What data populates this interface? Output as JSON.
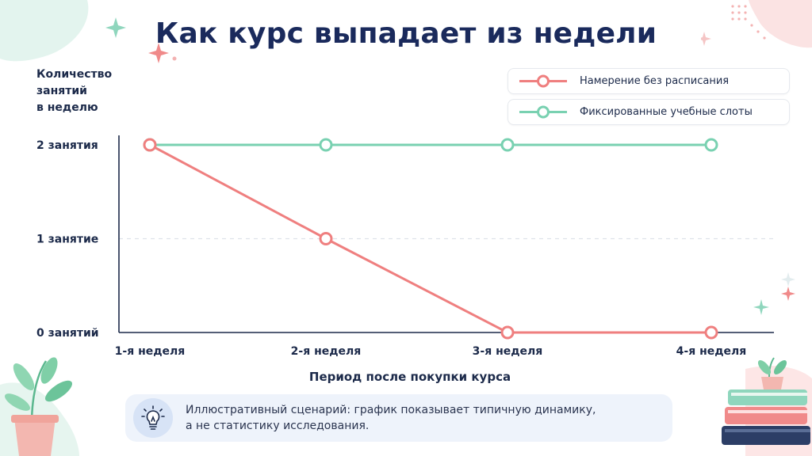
{
  "title": "Как курс выпадает из недели",
  "legend": [
    {
      "label": "Намерение без расписания",
      "color": "#ef7f7f"
    },
    {
      "label": "Фиксированные учебные слоты",
      "color": "#79d1b1"
    }
  ],
  "note": {
    "icon": "lightbulb-icon",
    "line1": "Иллюстративный сценарий: график показывает типичную динамику,",
    "line2": "а не статистику исследования."
  },
  "chart_data": {
    "type": "line",
    "title": "Как курс выпадает из недели",
    "ylabel_lines": [
      "Количество",
      "занятий",
      "в неделю"
    ],
    "xlabel": "Период после покупки курса",
    "categories": [
      "1-я неделя",
      "2-я неделя",
      "3-я неделя",
      "4-я неделя"
    ],
    "ylim": [
      0,
      2
    ],
    "yticks": [
      {
        "value": 0,
        "label": "0 занятий"
      },
      {
        "value": 1,
        "label": "1 занятие"
      },
      {
        "value": 2,
        "label": "2 занятия"
      }
    ],
    "grid": "dashed line at 1",
    "legend_position": "top-right",
    "series": [
      {
        "name": "Намерение без расписания",
        "color": "#ef7f7f",
        "values": [
          2,
          1,
          0,
          0
        ]
      },
      {
        "name": "Фиксированные учебные слоты",
        "color": "#79d1b1",
        "values": [
          2,
          2,
          2,
          2
        ]
      }
    ]
  }
}
